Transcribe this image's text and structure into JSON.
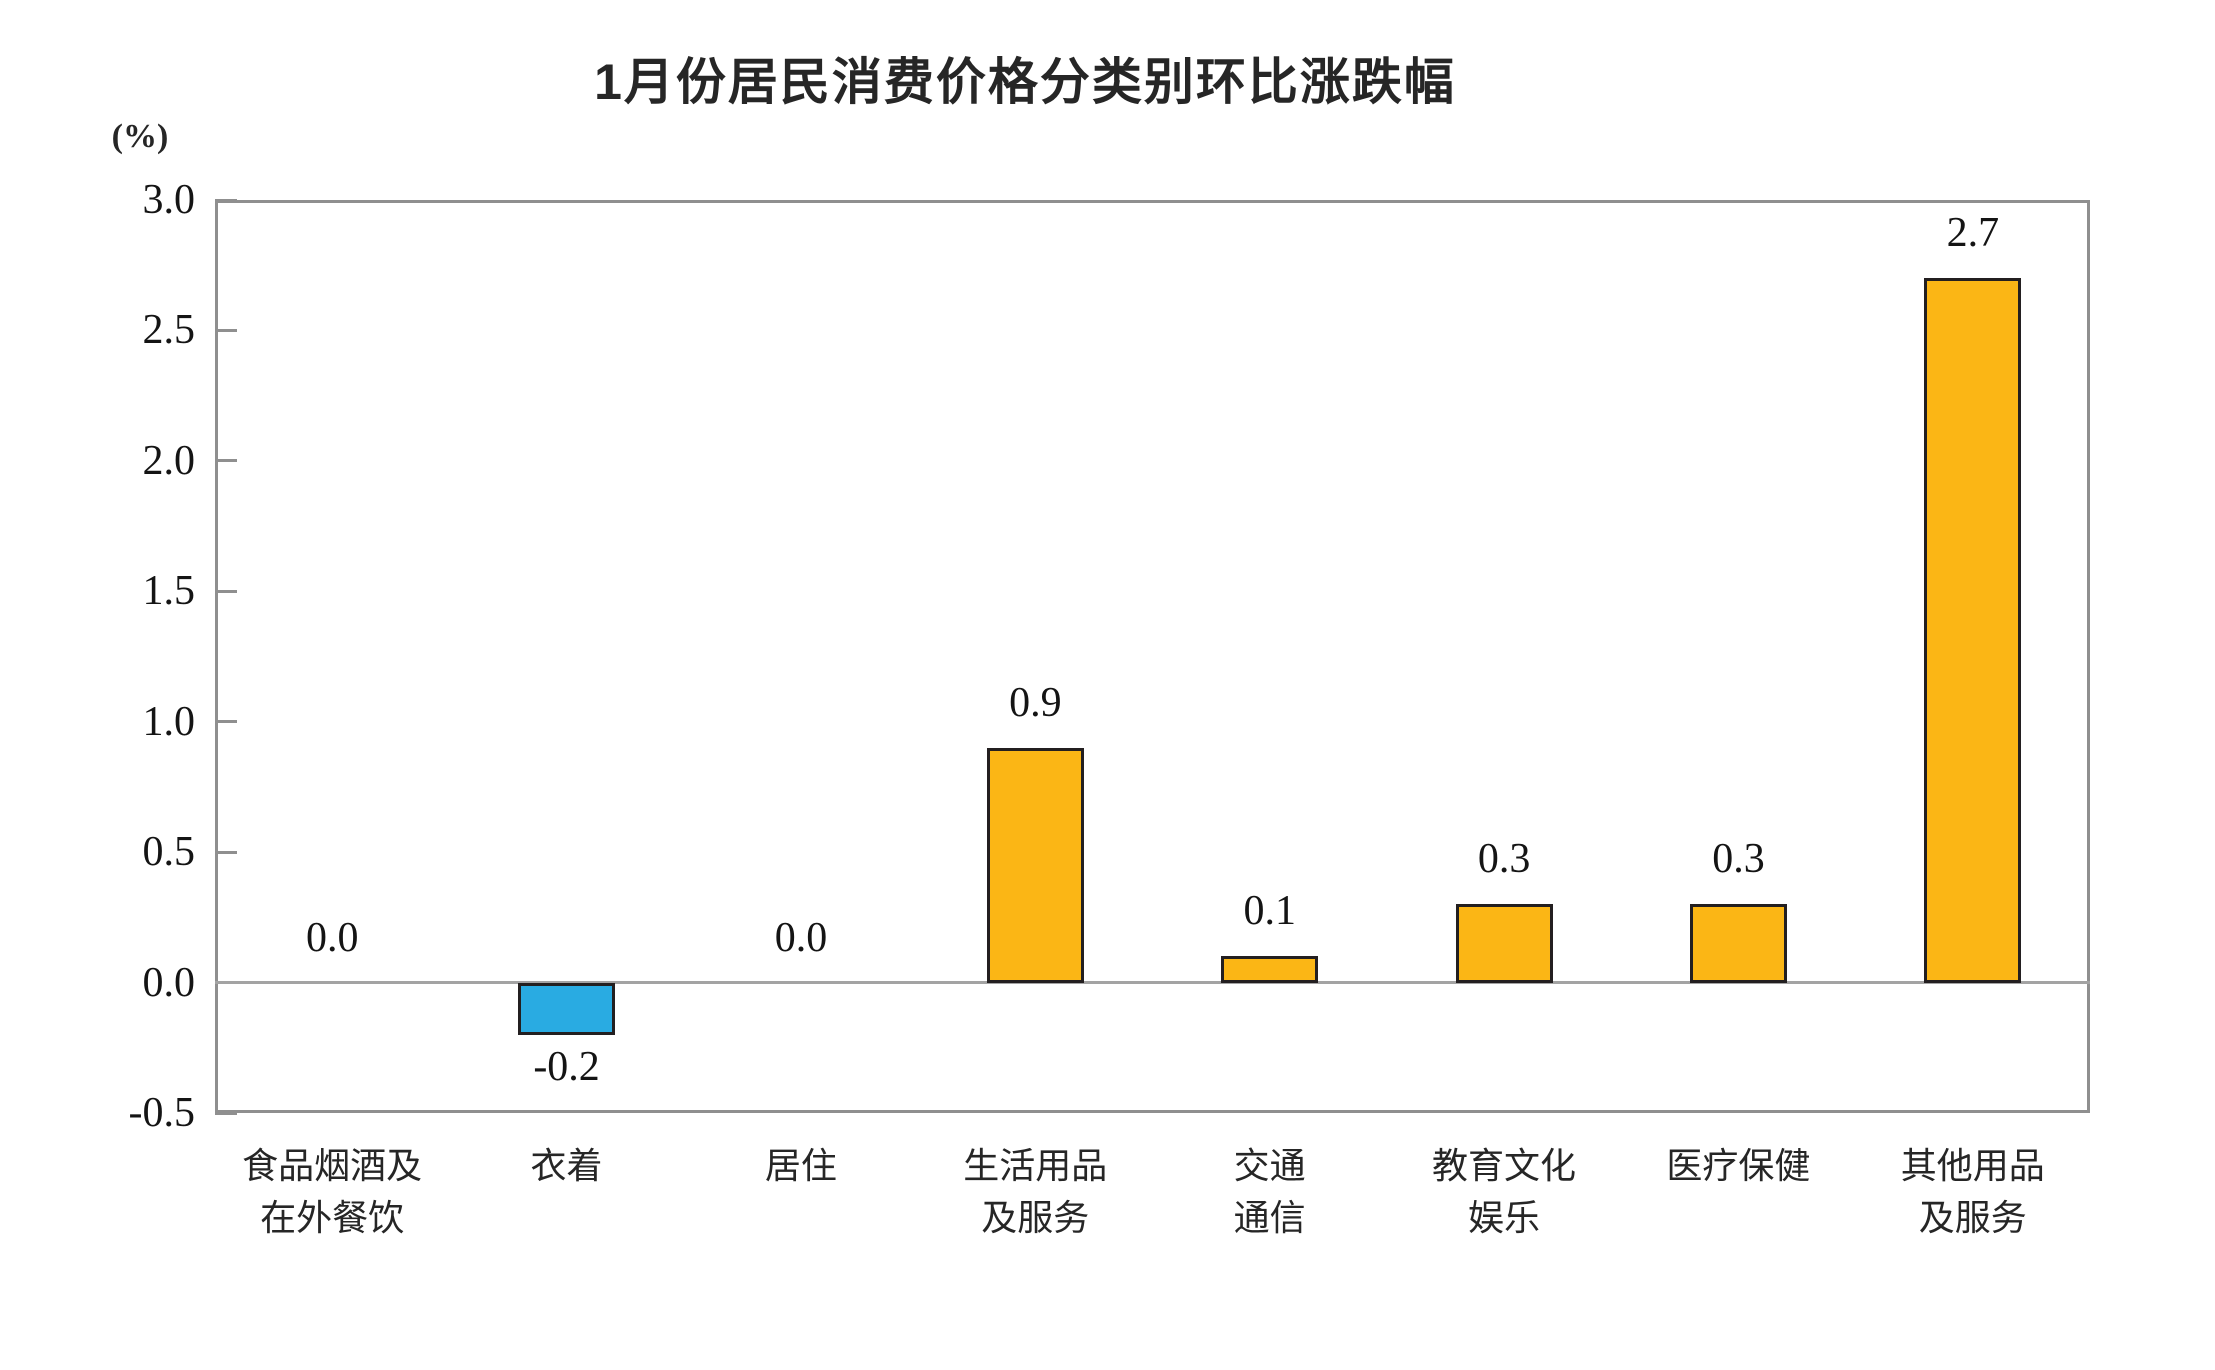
{
  "chart_data": {
    "type": "bar",
    "title": "1月份居民消费价格分类别环比涨跌幅",
    "unit_label": "(%)",
    "categories": [
      [
        "食品烟酒及",
        "在外餐饮"
      ],
      [
        "衣着"
      ],
      [
        "居住"
      ],
      [
        "生活用品",
        "及服务"
      ],
      [
        "交通",
        "通信"
      ],
      [
        "教育文化",
        "娱乐"
      ],
      [
        "医疗保健"
      ],
      [
        "其他用品",
        "及服务"
      ]
    ],
    "values": [
      0.0,
      -0.2,
      0.0,
      0.9,
      0.1,
      0.3,
      0.3,
      2.7
    ],
    "value_labels": [
      "0.0",
      "-0.2",
      "0.0",
      "0.9",
      "0.1",
      "0.3",
      "0.3",
      "2.7"
    ],
    "ylim": [
      -0.5,
      3.0
    ],
    "yticks": [
      3.0,
      2.5,
      2.0,
      1.5,
      1.0,
      0.5,
      0.0,
      -0.5
    ],
    "ytick_labels": [
      "3.0",
      "2.5",
      "2.0",
      "1.5",
      "1.0",
      "0.5",
      "0.0",
      "-0.5"
    ],
    "grid": false,
    "legend": "none",
    "colors": {
      "positive_bar": "#FBB615",
      "negative_bar": "#29ABE2",
      "bar_border": "#231F20",
      "axis": "#8F8F8F",
      "text": "#141414"
    }
  }
}
